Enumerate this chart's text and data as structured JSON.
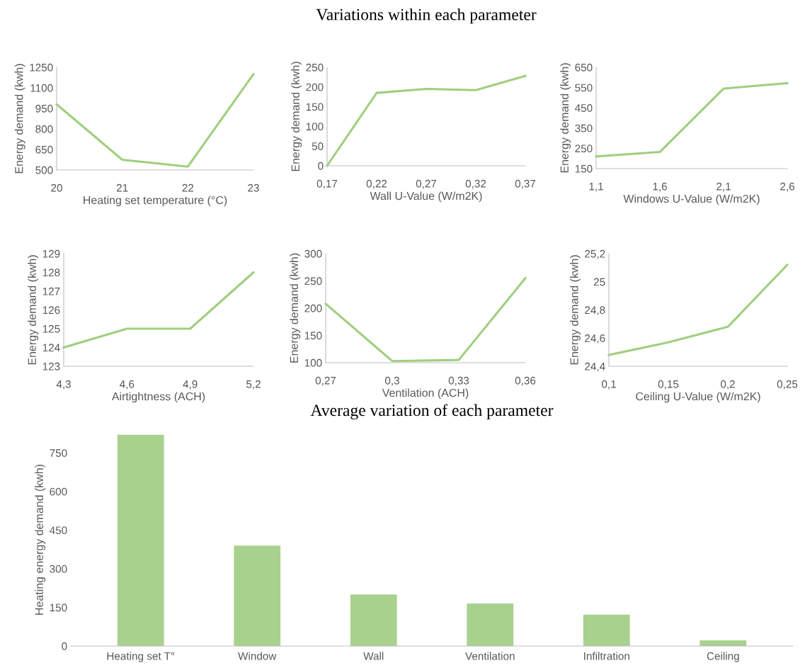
{
  "chart_data": [
    {
      "type": "line",
      "xlabel": "Heating set temperature (°C)",
      "ylabel": "Energy demand (kwh)",
      "categories": [
        "20",
        "21",
        "22",
        "23"
      ],
      "series": [
        {
          "color": "#9fcf7f",
          "values": [
            980,
            575,
            525,
            1200
          ]
        }
      ],
      "ylim": [
        500,
        1250
      ],
      "yticks": [
        500,
        650,
        800,
        950,
        1100,
        1250
      ],
      "grid": false,
      "marker": "none"
    },
    {
      "type": "line",
      "title": "Variations within each parameter",
      "xlabel": "Wall U-Value (W/m2K)",
      "ylabel": "Energy demand (kwh)",
      "categories": [
        "0,17",
        "0,22",
        "0,27",
        "0,32",
        "0,37"
      ],
      "series": [
        {
          "color": "#9fcf7f",
          "values": [
            0,
            185,
            195,
            192,
            228
          ]
        }
      ],
      "ylim": [
        0,
        250
      ],
      "yticks": [
        0,
        50,
        100,
        150,
        200,
        250
      ],
      "grid": false,
      "marker": "none"
    },
    {
      "type": "line",
      "xlabel": "Windows U-Value (W/m2K)",
      "ylabel": "Energy demand (kwh)",
      "categories": [
        "1,1",
        "1,6",
        "2,1",
        "2,6"
      ],
      "series": [
        {
          "color": "#9fcf7f",
          "values": [
            210,
            232,
            545,
            572
          ]
        }
      ],
      "ylim": [
        150,
        650
      ],
      "yticks": [
        150,
        250,
        350,
        450,
        550,
        650
      ],
      "grid": false,
      "marker": "none"
    },
    {
      "type": "line",
      "xlabel": "Airtightness (ACH)",
      "ylabel": "Energy demand (kwh)",
      "categories": [
        "4,3",
        "4,6",
        "4,9",
        "5,2"
      ],
      "series": [
        {
          "color": "#9fcf7f",
          "values": [
            124,
            125,
            125,
            128
          ]
        }
      ],
      "ylim": [
        123,
        129
      ],
      "yticks": [
        123,
        124,
        125,
        126,
        127,
        128,
        129
      ],
      "grid": false,
      "marker": "none"
    },
    {
      "type": "line",
      "xlabel": "Ventilation (ACH)",
      "ylabel": "Energy demand (kwh)",
      "categories": [
        "0,27",
        "0,3",
        "0,33",
        "0,36"
      ],
      "series": [
        {
          "color": "#9fcf7f",
          "values": [
            208,
            103,
            105,
            255
          ]
        }
      ],
      "ylim": [
        100,
        300
      ],
      "yticks": [
        100,
        150,
        200,
        250,
        300
      ],
      "grid": false,
      "marker": "none"
    },
    {
      "type": "line",
      "xlabel": "Ceiling U-Value (W/m2K)",
      "ylabel": "Energy demand (kwh)",
      "categories": [
        "0,1",
        "0,15",
        "0,2",
        "0,25"
      ],
      "series": [
        {
          "color": "#9fcf7f",
          "values": [
            24.48,
            24.57,
            24.68,
            25.12
          ]
        }
      ],
      "ylim": [
        24.4,
        25.2
      ],
      "yticks": [
        {
          "value": 24.4,
          "label": "24,4"
        },
        {
          "value": 24.6,
          "label": "24,6"
        },
        {
          "value": 24.8,
          "label": "24,8"
        },
        {
          "value": 25,
          "label": "25"
        },
        {
          "value": 25.2,
          "label": "25,2"
        }
      ],
      "grid": false,
      "marker": "none"
    },
    {
      "type": "bar",
      "title": "Average variation of each parameter",
      "ylabel": "Heating energy demand (kwh)",
      "categories": [
        "Heating set T°",
        "Window",
        "Wall",
        "Ventilation",
        "Infiltration",
        "Ceiling"
      ],
      "series": [
        {
          "color": "#a9d18e",
          "values": [
            820,
            390,
            200,
            165,
            122,
            22
          ]
        }
      ],
      "ylim": [
        0,
        825
      ],
      "yticks": [
        0,
        150,
        300,
        450,
        600,
        750
      ],
      "grid": false
    }
  ]
}
